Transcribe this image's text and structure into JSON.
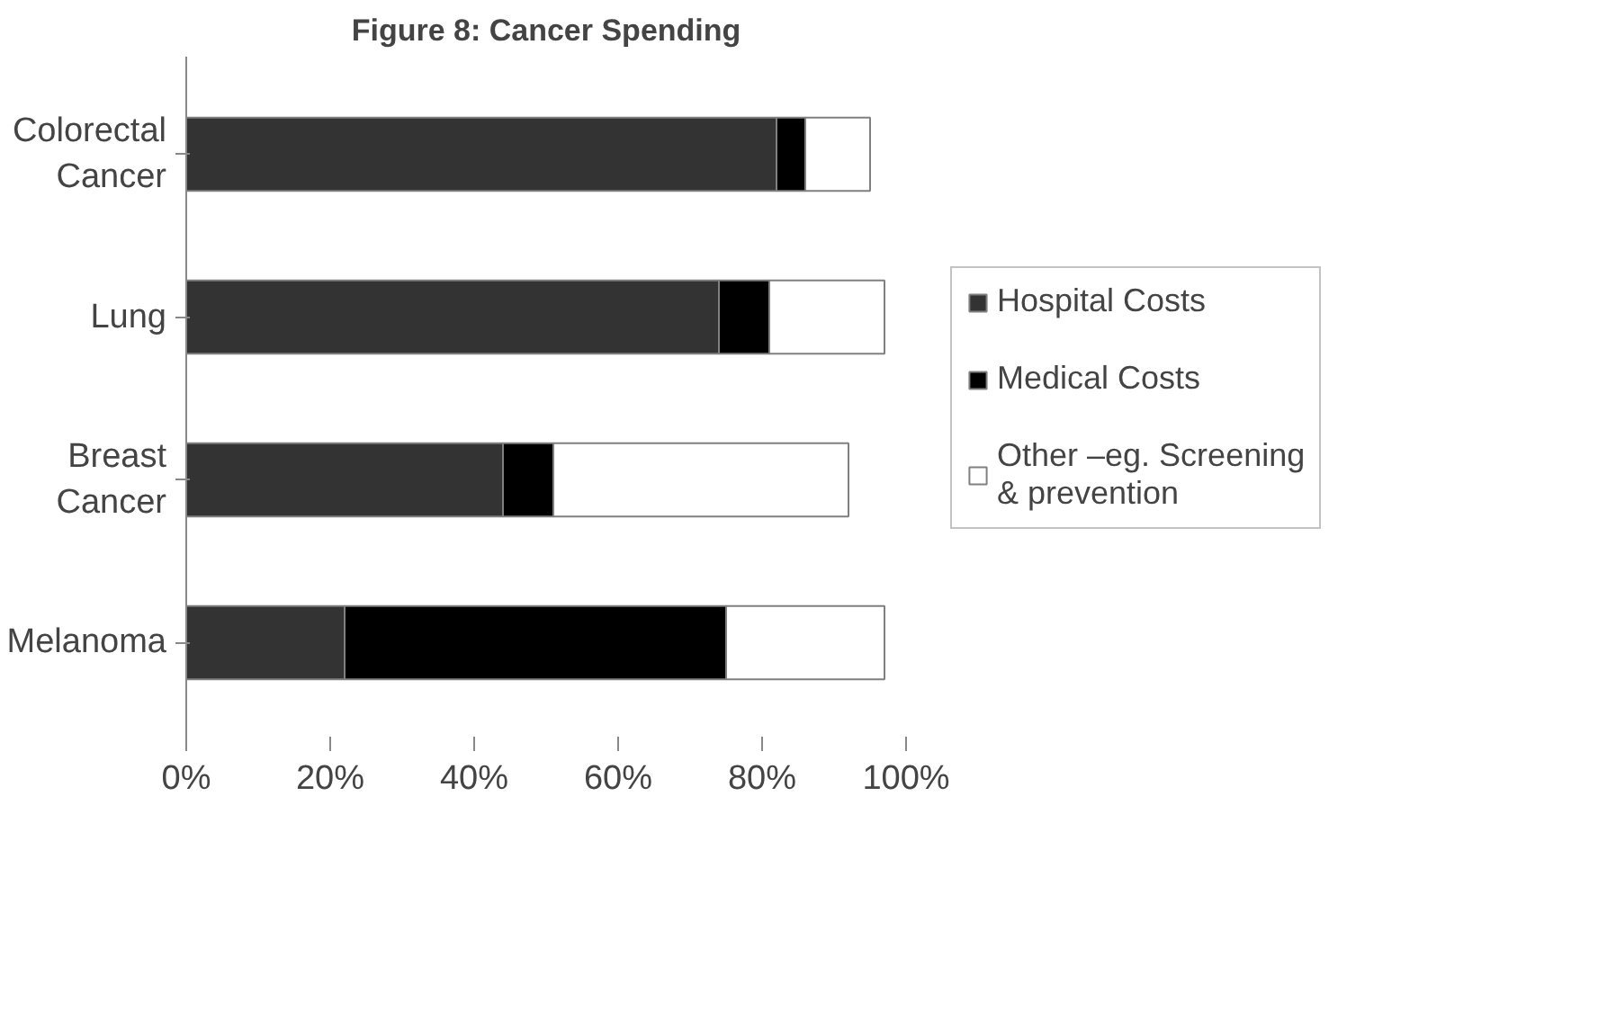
{
  "chart_data": {
    "type": "bar",
    "orientation": "horizontal",
    "stacked": true,
    "title": "Figure 8: Cancer Spending",
    "categories": [
      "Colorectal Cancer",
      "Lung",
      "Breast Cancer",
      "Melanoma"
    ],
    "series": [
      {
        "name": "Hospital Costs",
        "color": "#333333",
        "values": [
          82,
          74,
          44,
          22
        ]
      },
      {
        "name": "Medical Costs",
        "color": "#000000",
        "values": [
          4,
          7,
          7,
          53
        ]
      },
      {
        "name": "Other –eg. Screening & prevention",
        "color": "#ffffff",
        "values": [
          9,
          16,
          41,
          22
        ]
      }
    ],
    "xlim": [
      0,
      100
    ],
    "xticks": [
      {
        "value": 0,
        "label": "0%"
      },
      {
        "value": 20,
        "label": "20%"
      },
      {
        "value": 40,
        "label": "40%"
      },
      {
        "value": 60,
        "label": "60%"
      },
      {
        "value": 80,
        "label": "80%"
      },
      {
        "value": 100,
        "label": "100%"
      }
    ],
    "grid": false,
    "legend": "right"
  }
}
